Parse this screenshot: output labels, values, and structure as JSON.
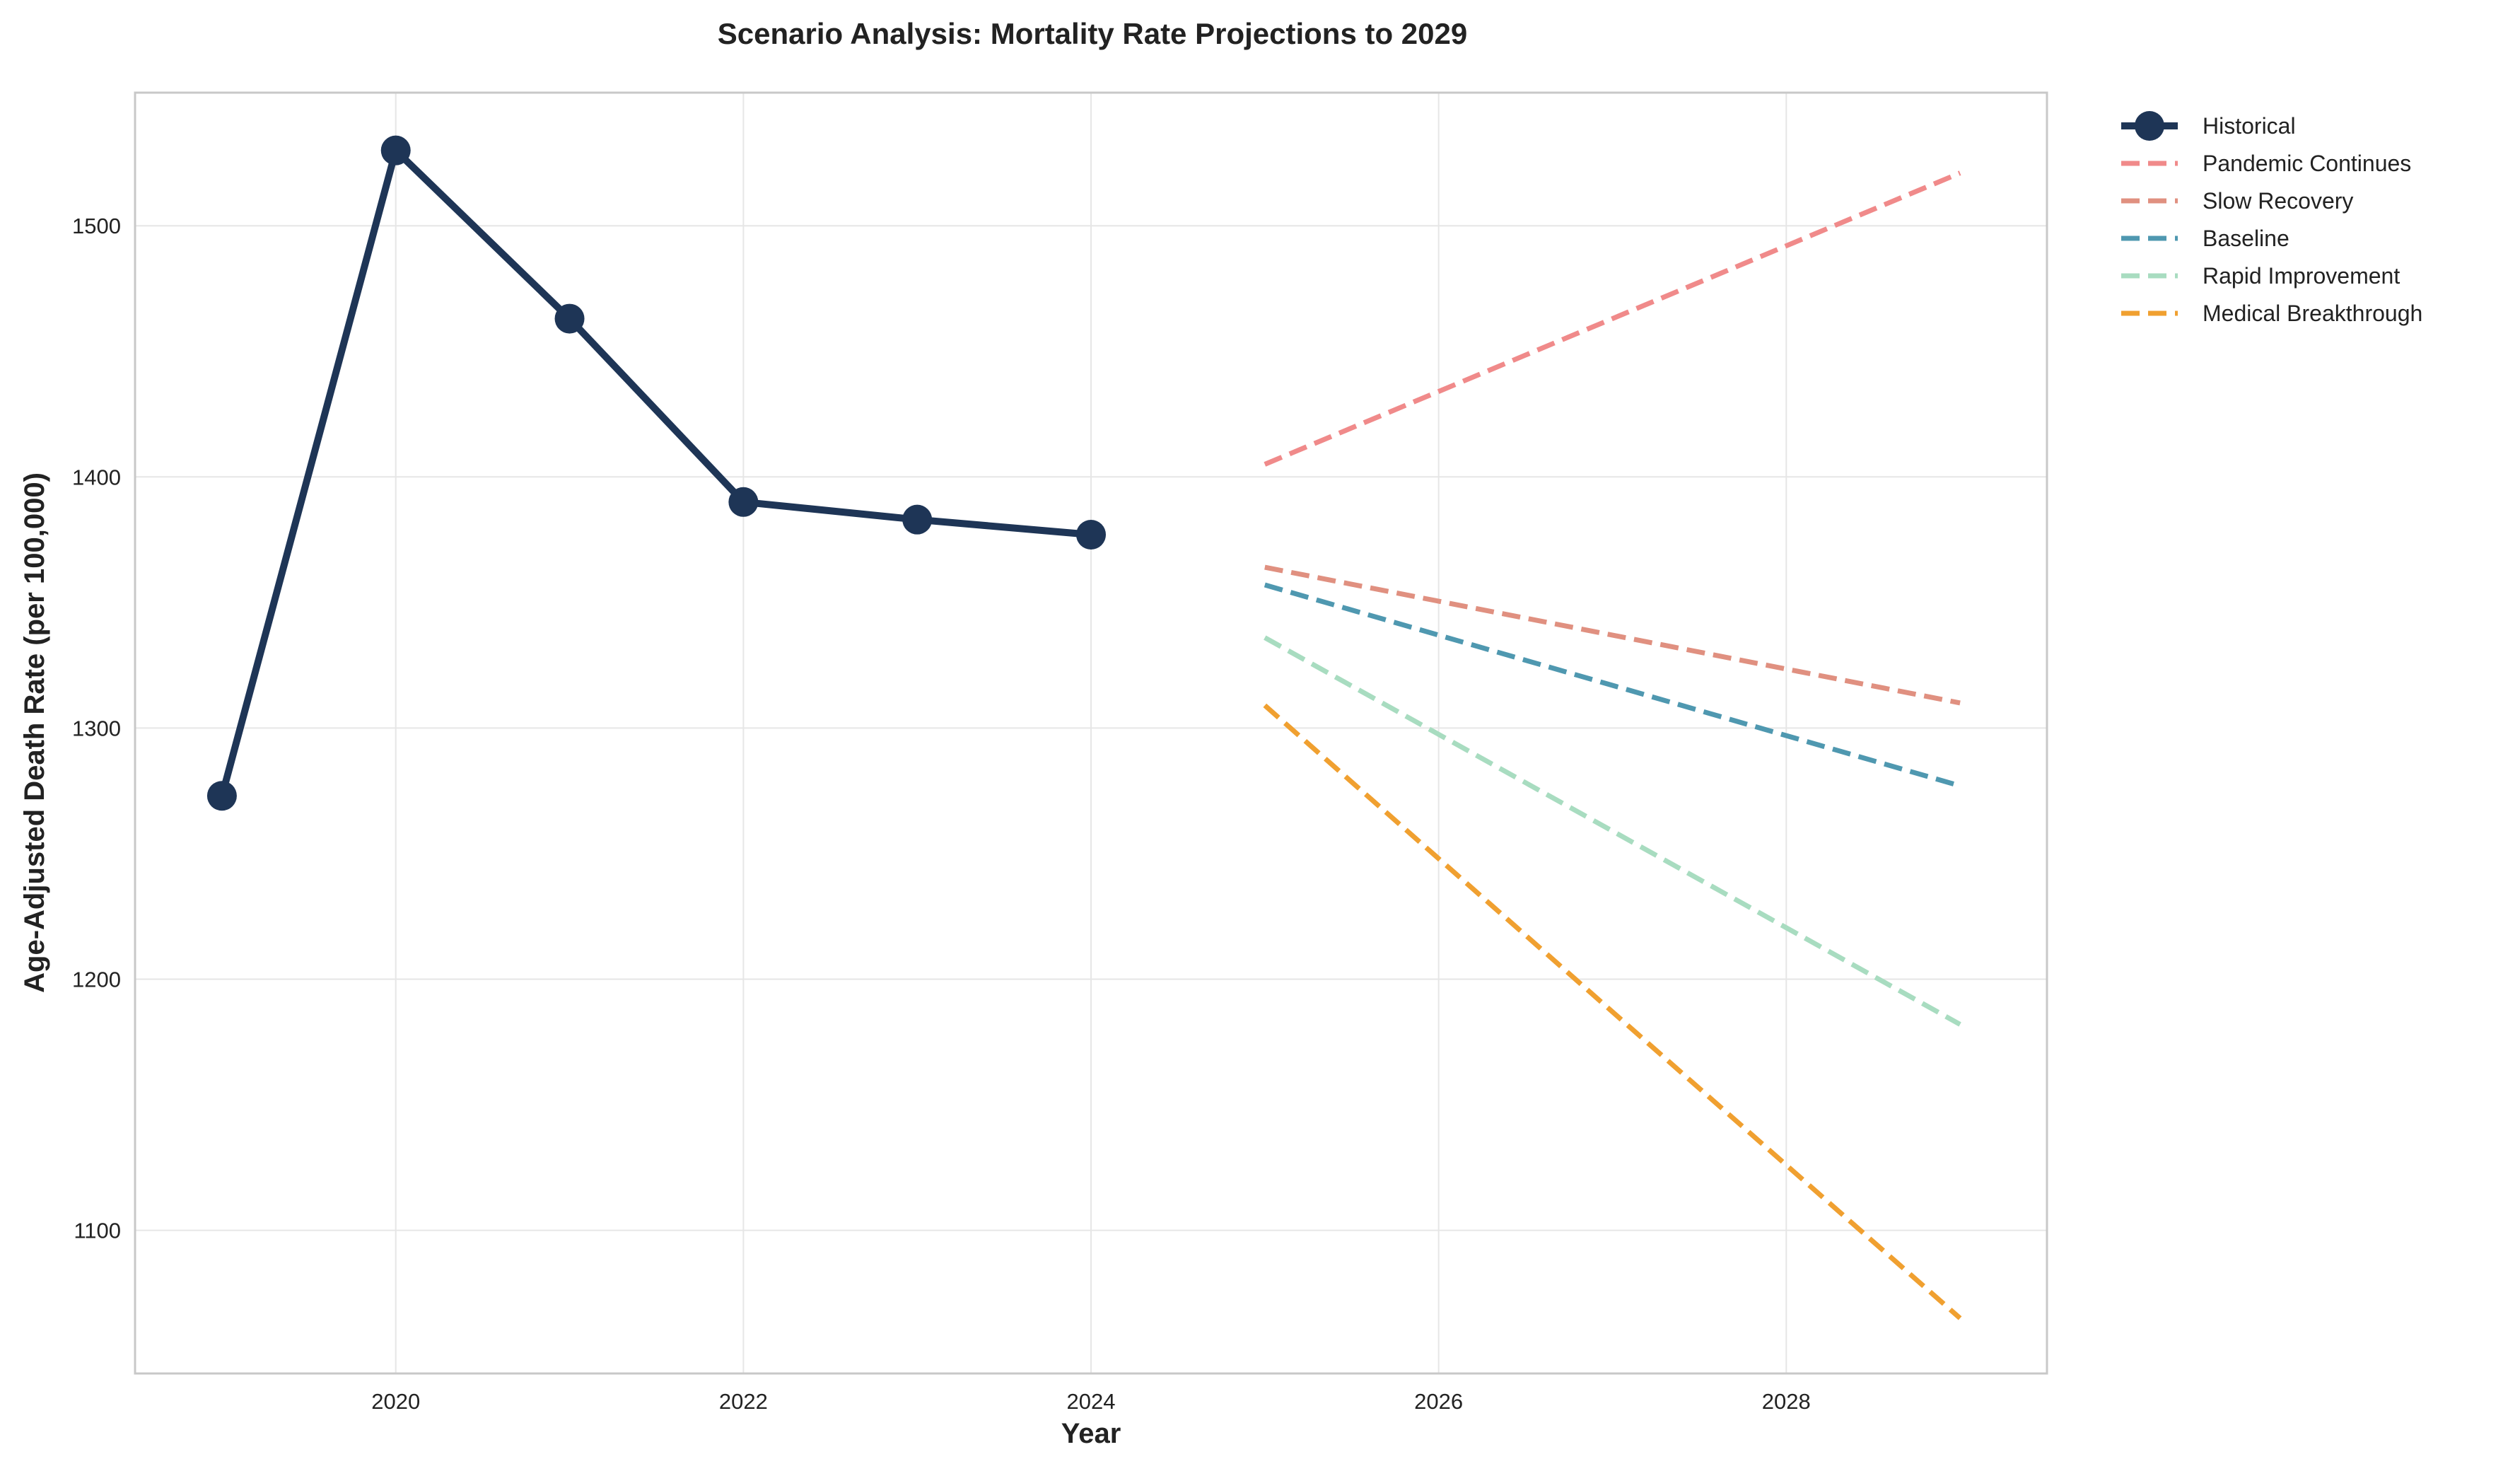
{
  "chart_data": {
    "type": "line",
    "title": "Scenario Analysis: Mortality Rate Projections to 2029",
    "xlabel": "Year",
    "ylabel": "Age-Adjusted Death Rate (per 100,000)",
    "xlim": [
      2018.5,
      2029.5
    ],
    "ylim": [
      1043,
      1553
    ],
    "x_ticks": [
      2020,
      2022,
      2024,
      2026,
      2028
    ],
    "y_ticks": [
      1100,
      1200,
      1300,
      1400,
      1500
    ],
    "grid": true,
    "legend_position": "outside-top-right",
    "series": [
      {
        "name": "Historical",
        "x": [
          2019,
          2020,
          2021,
          2022,
          2023,
          2024
        ],
        "values": [
          1273,
          1530,
          1463,
          1390,
          1383,
          1377
        ],
        "color": "#1e3556",
        "style": "solid-markers"
      },
      {
        "name": "Pandemic Continues",
        "x": [
          2025,
          2029
        ],
        "values": [
          1405,
          1521
        ],
        "color": "#f08a8a",
        "style": "dashed"
      },
      {
        "name": "Slow Recovery",
        "x": [
          2025,
          2029
        ],
        "values": [
          1364,
          1310
        ],
        "color": "#e09080",
        "style": "dashed"
      },
      {
        "name": "Baseline",
        "x": [
          2025,
          2029
        ],
        "values": [
          1357,
          1277
        ],
        "color": "#4f98b0",
        "style": "dashed"
      },
      {
        "name": "Rapid Improvement",
        "x": [
          2025,
          2029
        ],
        "values": [
          1336,
          1182
        ],
        "color": "#a8dcc0",
        "style": "dashed"
      },
      {
        "name": "Medical Breakthrough",
        "x": [
          2025,
          2029
        ],
        "values": [
          1309,
          1065
        ],
        "color": "#f0a030",
        "style": "dashed"
      }
    ]
  }
}
